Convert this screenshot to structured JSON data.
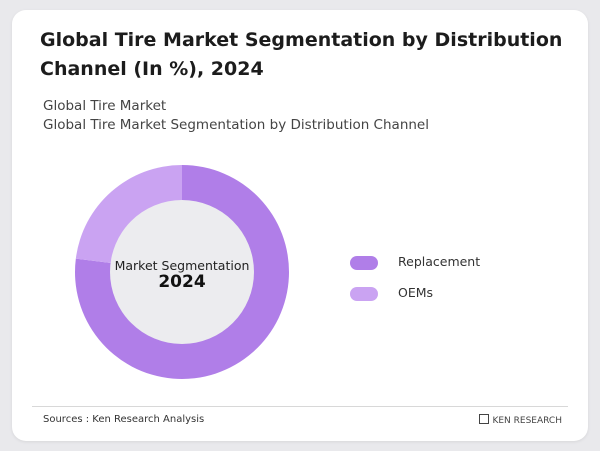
{
  "page": {
    "title": "Global Tire Market Segmentation by Distribution Channel (In %), 2024",
    "subtitle_line1": "Global Tire Market",
    "subtitle_line2": "Global Tire Market Segmentation by Distribution Channel",
    "center_label": "Market Segmentation",
    "center_year": "2024",
    "source": "Sources : Ken Research Analysis",
    "brand": "KEN RESEARCH"
  },
  "chart_data": {
    "type": "pie",
    "title": "Global Tire Market Segmentation by Distribution Channel (In %), 2024",
    "categories": [
      "Replacement",
      "OEMs"
    ],
    "values": [
      77,
      23
    ],
    "colors": [
      "#b07ee8",
      "#caa3f2"
    ],
    "legend_position": "right",
    "variant": "donut"
  }
}
